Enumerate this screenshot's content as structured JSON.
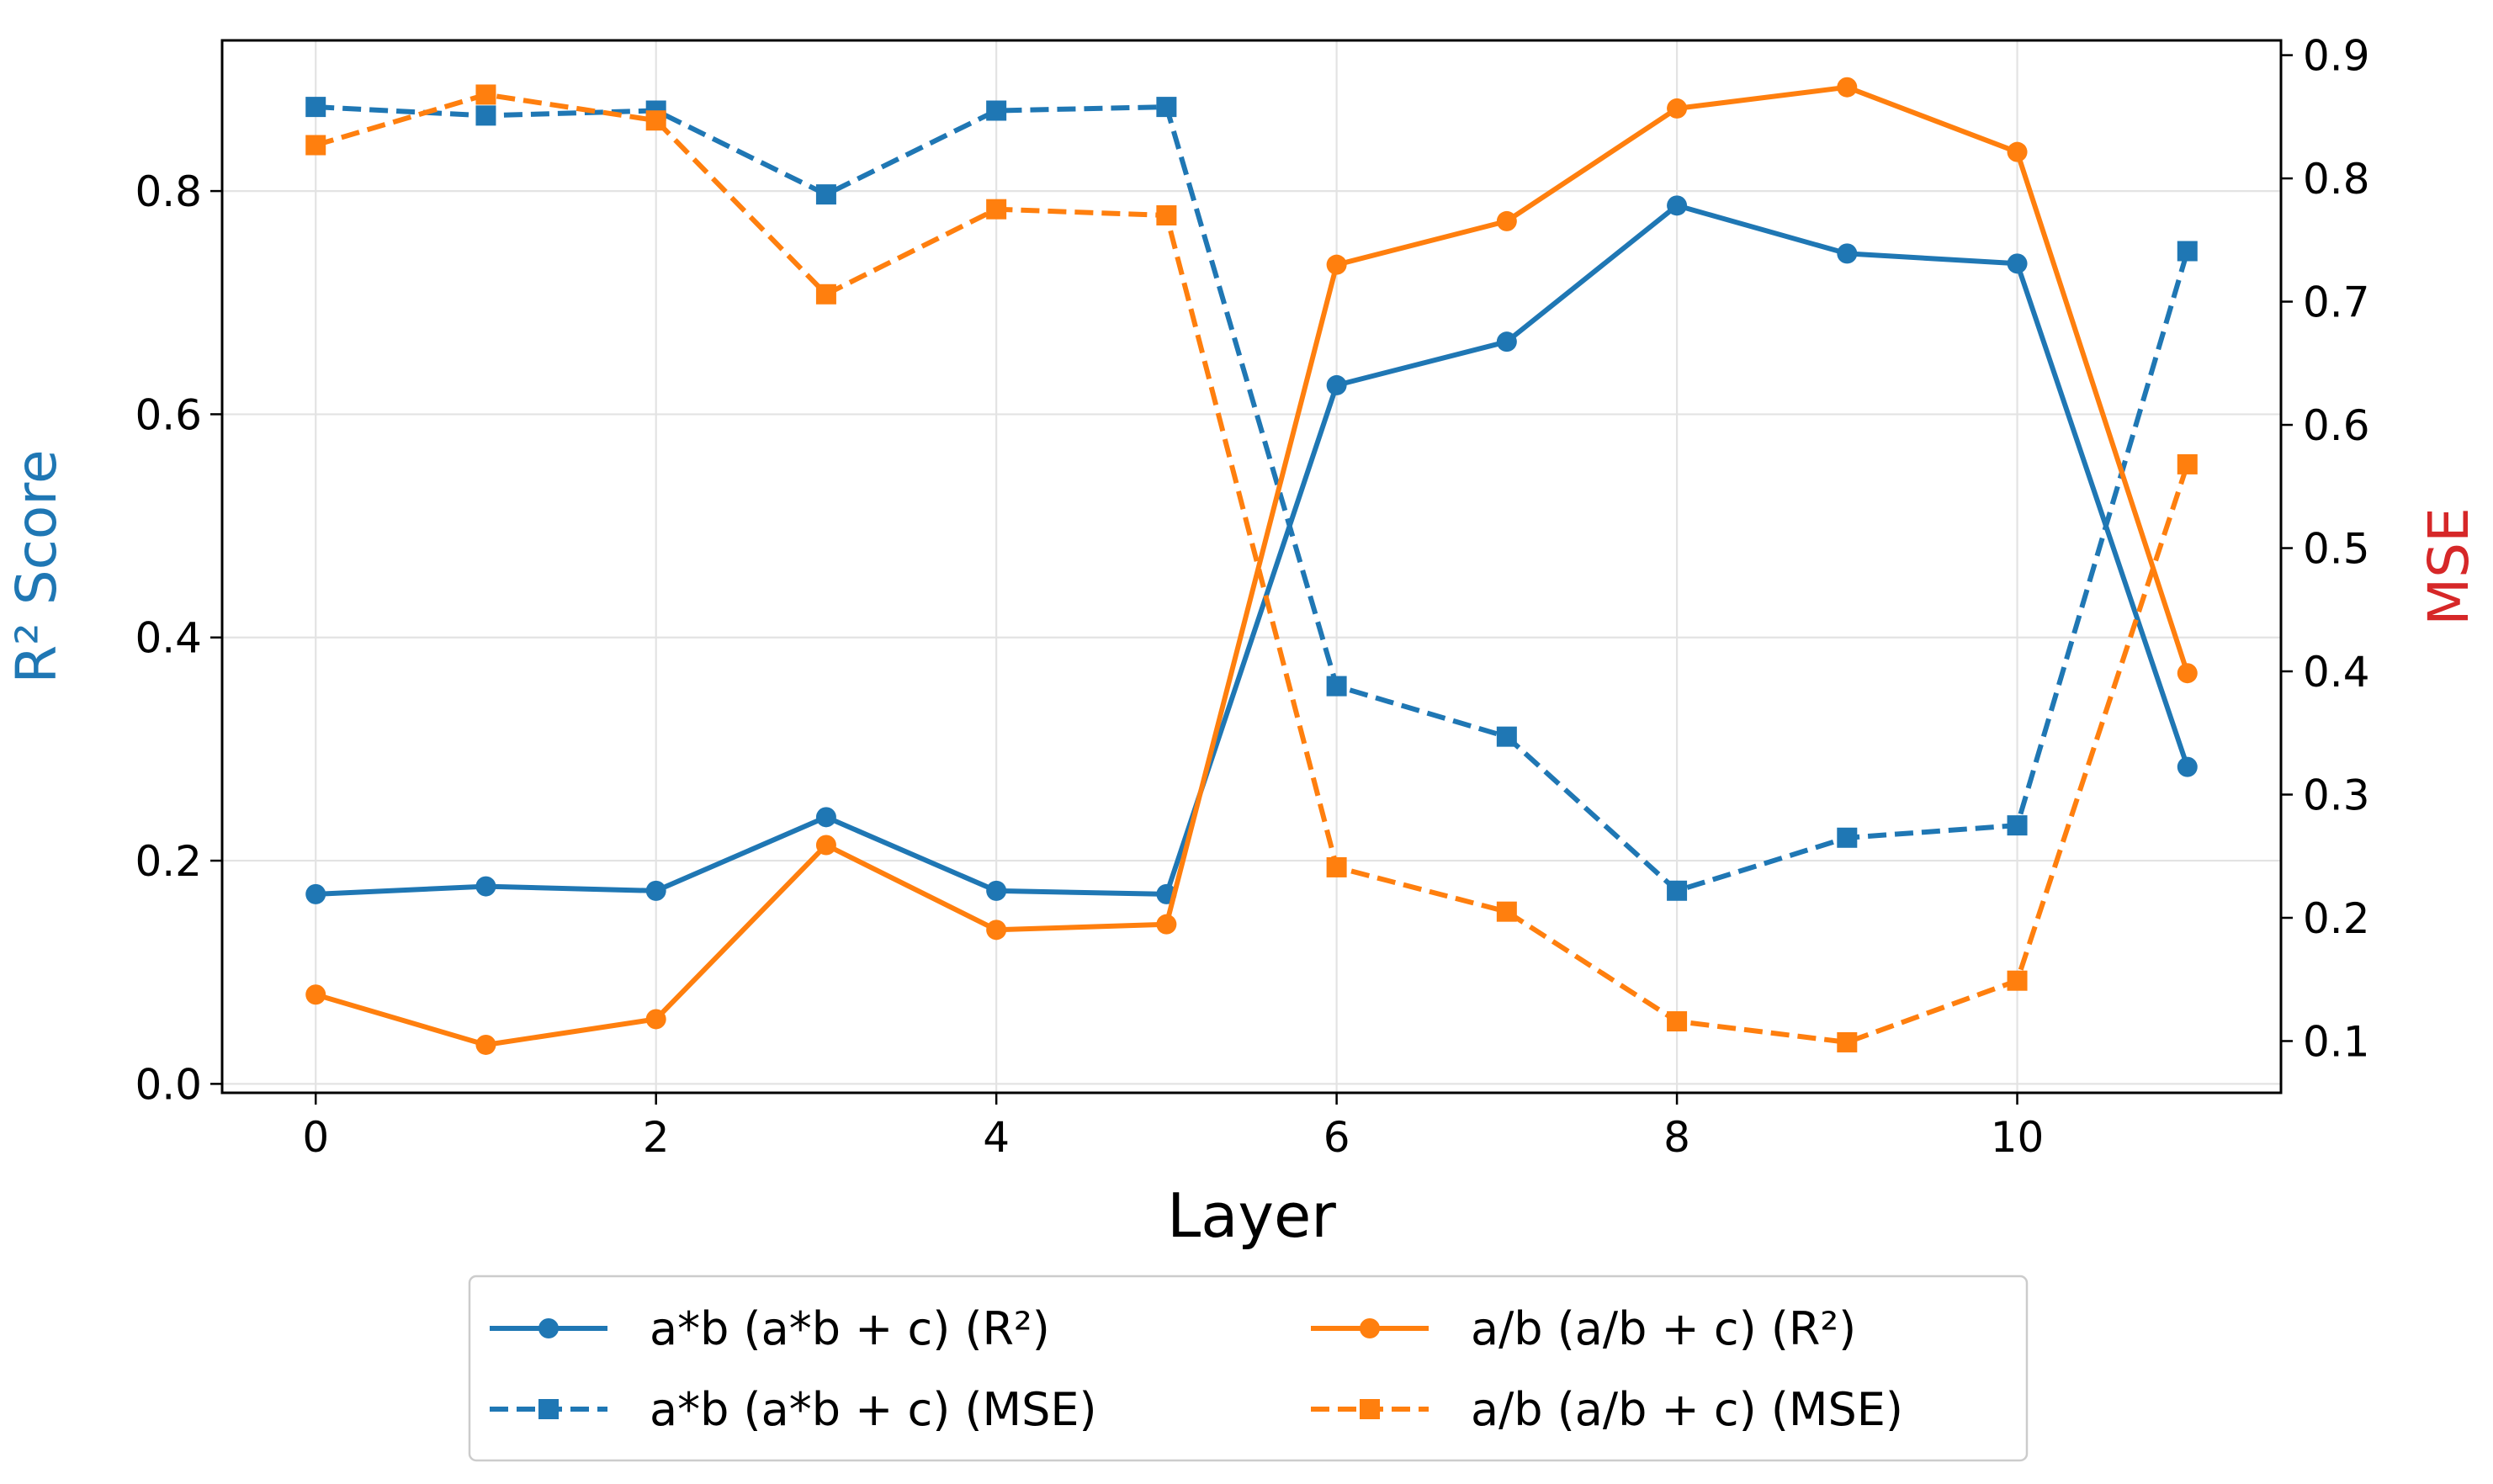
{
  "chart_data": {
    "type": "line",
    "title": "",
    "xlabel": "Layer",
    "ylabel_left": "R² Score",
    "ylabel_right": "MSE",
    "ylabel_left_color": "#1f77b4",
    "ylabel_right_color": "#d62728",
    "xlim": [
      -0.55,
      11.55
    ],
    "ylim_left": [
      -0.008,
      0.935
    ],
    "ylim_right": [
      0.058,
      0.912
    ],
    "x_ticks": [
      0,
      2,
      4,
      6,
      8,
      10
    ],
    "x_tick_labels": [
      "0",
      "2",
      "4",
      "6",
      "8",
      "10"
    ],
    "y_left_ticks": [
      0.0,
      0.2,
      0.4,
      0.6,
      0.8
    ],
    "y_left_tick_labels": [
      "0.0",
      "0.2",
      "0.4",
      "0.6",
      "0.8"
    ],
    "y_right_ticks": [
      0.1,
      0.2,
      0.3,
      0.4,
      0.5,
      0.6,
      0.7,
      0.8,
      0.9
    ],
    "y_right_tick_labels": [
      "0.1",
      "0.2",
      "0.3",
      "0.4",
      "0.5",
      "0.6",
      "0.7",
      "0.8",
      "0.9"
    ],
    "grid": true,
    "legend_position": "bottom-center, below axes",
    "x": [
      0,
      1,
      2,
      3,
      4,
      5,
      6,
      7,
      8,
      9,
      10,
      11
    ],
    "series": [
      {
        "name": "a*b (a*b + c) (R²)",
        "axis": "left",
        "color": "#1f77b4",
        "linestyle": "solid",
        "marker": "circle",
        "values": [
          0.17,
          0.177,
          0.173,
          0.239,
          0.173,
          0.17,
          0.626,
          0.665,
          0.787,
          0.744,
          0.735,
          0.284
        ]
      },
      {
        "name": "a/b (a/b + c) (R²)",
        "axis": "left",
        "color": "#ff7f0e",
        "linestyle": "solid",
        "marker": "circle",
        "values": [
          0.08,
          0.035,
          0.058,
          0.214,
          0.138,
          0.143,
          0.734,
          0.773,
          0.874,
          0.893,
          0.835,
          0.368
        ]
      },
      {
        "name": "a*b (a*b + c) (MSE)",
        "axis": "right",
        "color": "#1f77b4",
        "linestyle": "dashed",
        "marker": "square",
        "values": [
          0.858,
          0.851,
          0.855,
          0.787,
          0.855,
          0.858,
          0.388,
          0.347,
          0.222,
          0.265,
          0.275,
          0.741
        ]
      },
      {
        "name": "a/b (a/b + c) (MSE)",
        "axis": "right",
        "color": "#ff7f0e",
        "linestyle": "dashed",
        "marker": "square",
        "values": [
          0.827,
          0.868,
          0.847,
          0.706,
          0.775,
          0.77,
          0.241,
          0.205,
          0.116,
          0.099,
          0.149,
          0.568
        ]
      }
    ],
    "legend": [
      {
        "label": "a*b (a*b + c) (R²)",
        "series_index": 0
      },
      {
        "label": "a/b (a/b + c) (R²)",
        "series_index": 1
      },
      {
        "label": "a*b (a*b + c) (MSE)",
        "series_index": 2
      },
      {
        "label": "a/b (a/b + c) (MSE)",
        "series_index": 3
      }
    ]
  }
}
